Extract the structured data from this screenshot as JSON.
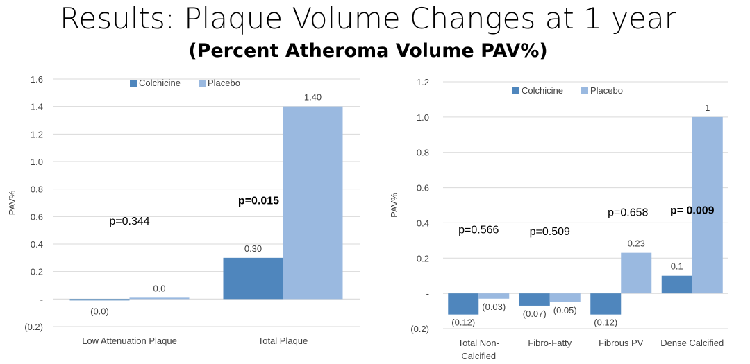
{
  "slide": {
    "title": "Results: Plaque Volume Changes at 1 year",
    "subtitle": "(Percent Atheroma Volume PAV%)"
  },
  "colors": {
    "colchicine": "#4f86bd",
    "placebo": "#9ab9e0",
    "grid": "#d9d9d9",
    "axis_text": "#404040"
  },
  "chart_data": [
    {
      "type": "bar",
      "title": "",
      "xlabel": "",
      "ylabel": "PAV%",
      "ylim": [
        -0.2,
        1.6
      ],
      "y_ticks": [
        -0.2,
        0,
        0.2,
        0.4,
        0.6,
        0.8,
        1.0,
        1.2,
        1.4,
        1.6
      ],
      "y_tick_labels": [
        "(0.2)",
        "-",
        "0.2",
        "0.4",
        "0.6",
        "0.8",
        "1.0",
        "1.2",
        "1.4",
        "1.6"
      ],
      "categories": [
        "Low Attenuation Plaque",
        "Total Plaque"
      ],
      "series": [
        {
          "name": "Colchicine",
          "values": [
            -0.01,
            0.3
          ],
          "labels": [
            "(0.0)",
            "0.30"
          ]
        },
        {
          "name": "Placebo",
          "values": [
            0.01,
            1.4
          ],
          "labels": [
            "0.0",
            "1.40"
          ]
        }
      ],
      "legend": "top-center",
      "annotations": [
        {
          "text": "p=0.344",
          "bold": false,
          "category": 0,
          "y": 0.54
        },
        {
          "text": "p=0.015",
          "bold": true,
          "category": 1,
          "y": 0.69
        }
      ]
    },
    {
      "type": "bar",
      "title": "",
      "xlabel": "",
      "ylabel": "PAV%",
      "ylim": [
        -0.2,
        1.2
      ],
      "y_ticks": [
        -0.2,
        0,
        0.2,
        0.4,
        0.6,
        0.8,
        1.0,
        1.2
      ],
      "y_tick_labels": [
        "(0.2)",
        "-",
        "0.2",
        "0.4",
        "0.6",
        "0.8",
        "1.0",
        "1.2"
      ],
      "categories": [
        "Total Non-\nCalcified",
        "Fibro-Fatty",
        "Fibrous PV",
        "Dense Calcified"
      ],
      "series": [
        {
          "name": "Colchicine",
          "values": [
            -0.12,
            -0.07,
            -0.12,
            0.1
          ],
          "labels": [
            "(0.12)",
            "(0.07)",
            "(0.12)",
            "0.1"
          ]
        },
        {
          "name": "Placebo",
          "values": [
            -0.03,
            -0.05,
            0.23,
            1.0
          ],
          "labels": [
            "(0.03)",
            "(0.05)",
            "0.23",
            "1"
          ]
        }
      ],
      "legend": "top-left",
      "annotations": [
        {
          "text": "p=0.566",
          "bold": false,
          "category": 0,
          "y": 0.34
        },
        {
          "text": "p=0.509",
          "bold": false,
          "category": 1,
          "y": 0.33
        },
        {
          "text": "p=0.658",
          "bold": false,
          "category": 2,
          "y": 0.44
        },
        {
          "text": "p= 0.009",
          "bold": true,
          "category": 3,
          "y": 0.45
        }
      ]
    }
  ]
}
